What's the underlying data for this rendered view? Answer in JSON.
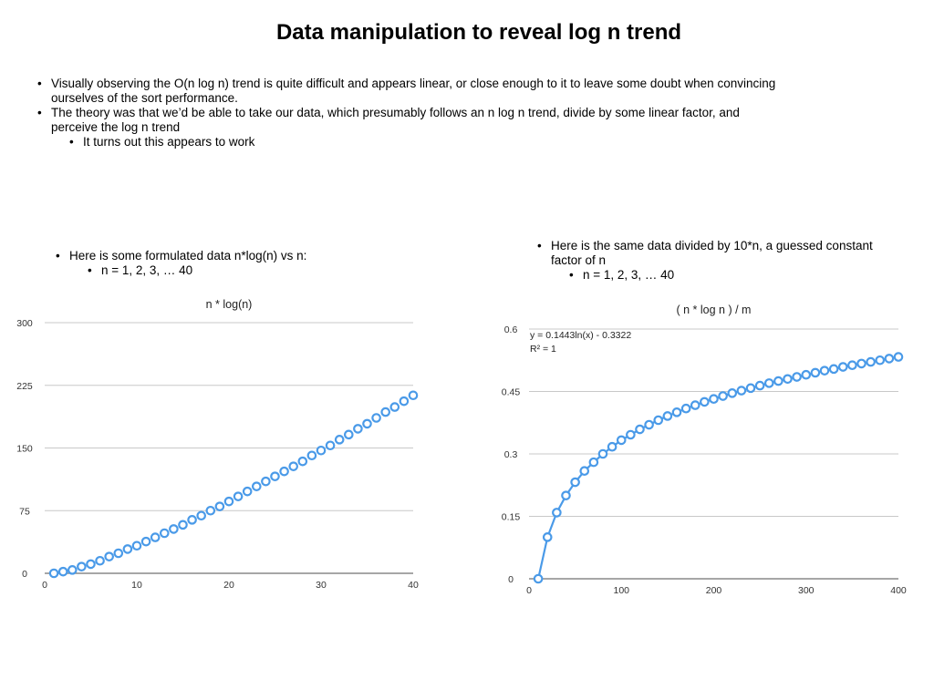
{
  "slide": {
    "title": "Data manipulation to reveal log n trend",
    "bullets": [
      "Visually observing the O(n log n) trend is quite difficult and appears linear, or close enough to it to leave some doubt when convincing ourselves of the sort performance.",
      "The theory was that we’d be able to take our data, which presumably follows an n log n trend, divide by some linear factor, and perceive the log n trend"
    ],
    "sub_bullet": "It turns out this appears to work"
  },
  "left_panel": {
    "bullet": "Here is some formulated data n*log(n) vs n:",
    "sub_bullet": "n = 1, 2, 3, … 40"
  },
  "right_panel": {
    "bullet": "Here is the same data divided by 10*n, a guessed constant factor of n",
    "sub_bullet": "n = 1, 2, 3, … 40"
  },
  "colors": {
    "series": "#4a9ae8",
    "grid": "#c8c8c8",
    "axis": "#888888"
  },
  "chart_data": [
    {
      "type": "scatter",
      "title": "n * log(n)",
      "xlabel": "",
      "ylabel": "",
      "xlim": [
        0,
        40
      ],
      "ylim": [
        0,
        300
      ],
      "xticks": [
        "0",
        "10",
        "20",
        "30",
        "40"
      ],
      "yticks": [
        "0",
        "75",
        "150",
        "225",
        "300"
      ],
      "grid": true,
      "marker": "hollow-circle",
      "series": [
        {
          "x": [
            1,
            2,
            3,
            4,
            5,
            6,
            7,
            8,
            9,
            10,
            11,
            12,
            13,
            14,
            15,
            16,
            17,
            18,
            19,
            20,
            21,
            22,
            23,
            24,
            25,
            26,
            27,
            28,
            29,
            30,
            31,
            32,
            33,
            34,
            35,
            36,
            37,
            38,
            39,
            40
          ],
          "values": [
            0,
            2,
            4,
            8,
            11,
            15,
            20,
            24,
            29,
            33,
            38,
            43,
            48,
            53,
            58,
            64,
            69,
            75,
            80,
            86,
            92,
            98,
            104,
            110,
            116,
            122,
            128,
            134,
            141,
            147,
            153,
            160,
            166,
            173,
            179,
            186,
            193,
            199,
            206,
            213
          ]
        }
      ]
    },
    {
      "type": "scatter",
      "title": "( n * log n ) / m",
      "xlabel": "",
      "ylabel": "",
      "xlim": [
        0,
        400
      ],
      "ylim": [
        0,
        0.6
      ],
      "xticks": [
        "0",
        "100",
        "200",
        "300",
        "400"
      ],
      "yticks": [
        "0",
        "0.15",
        "0.3",
        "0.45",
        "0.6"
      ],
      "grid": true,
      "marker": "hollow-circle",
      "trendline": "logarithmic",
      "annotations": [
        "y = 0.1443ln(x) - 0.3322",
        "R² = 1"
      ],
      "series": [
        {
          "x": [
            10,
            20,
            30,
            40,
            50,
            60,
            70,
            80,
            90,
            100,
            110,
            120,
            130,
            140,
            150,
            160,
            170,
            180,
            190,
            200,
            210,
            220,
            230,
            240,
            250,
            260,
            270,
            280,
            290,
            300,
            310,
            320,
            330,
            340,
            350,
            360,
            370,
            380,
            390,
            400
          ],
          "values": [
            0,
            0.1,
            0.159,
            0.2,
            0.232,
            0.259,
            0.28,
            0.3,
            0.317,
            0.333,
            0.346,
            0.359,
            0.37,
            0.381,
            0.391,
            0.4,
            0.409,
            0.417,
            0.425,
            0.432,
            0.439,
            0.446,
            0.452,
            0.458,
            0.464,
            0.47,
            0.475,
            0.48,
            0.485,
            0.49,
            0.495,
            0.5,
            0.504,
            0.509,
            0.513,
            0.517,
            0.521,
            0.525,
            0.529,
            0.533
          ]
        }
      ]
    }
  ]
}
